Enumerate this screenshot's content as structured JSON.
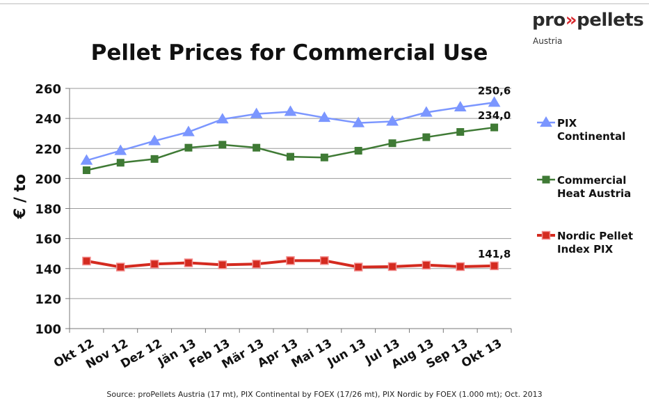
{
  "logo": {
    "prefix": "pro",
    "chevrons": "»",
    "suffix": "pellets",
    "sub": "Austria"
  },
  "source": "Source: proPellets Austria (17 mt), PIX Continental by FOEX (17/26 mt), PIX Nordic by FOEX (1.000 mt); Oct. 2013",
  "colors": {
    "pix_continental": "#7b96ff",
    "commercial_heat": "#3f7a35",
    "nordic": "#d42a1f"
  },
  "chart_data": {
    "type": "line",
    "title": "Pellet Prices for Commercial Use",
    "ylabel": "€ / to",
    "xlabel": "",
    "ylim": [
      100,
      260
    ],
    "yticks": [
      100,
      120,
      140,
      160,
      180,
      200,
      220,
      240,
      260
    ],
    "grid": true,
    "legend": "right",
    "categories": [
      "Okt 12",
      "Nov 12",
      "Dez 12",
      "Jän 13",
      "Feb 13",
      "Mär 13",
      "Apr 13",
      "Mai 13",
      "Jun 13",
      "Jul 13",
      "Aug 13",
      "Sep 13",
      "Okt 13"
    ],
    "series": [
      {
        "name": "PIX Continental",
        "legend_lines": [
          "PIX",
          "Continental"
        ],
        "marker": "triangle",
        "color": "#7b96ff",
        "values": [
          212,
          218.5,
          225,
          231,
          239.5,
          243,
          244.5,
          240.5,
          237,
          238,
          244,
          247.5,
          250.6
        ],
        "end_label": "250,6"
      },
      {
        "name": "Commercial Heat Austria",
        "legend_lines": [
          "Commercial",
          "Heat Austria"
        ],
        "marker": "square",
        "color": "#3f7a35",
        "values": [
          205.5,
          210.5,
          213,
          220.5,
          222.5,
          220.5,
          214.5,
          214,
          218.5,
          223.5,
          227.5,
          231,
          234.0
        ],
        "end_label": "234,0"
      },
      {
        "name": "Nordic Pellet Index PIX",
        "legend_lines": [
          "Nordic Pellet",
          "Index PIX"
        ],
        "marker": "square",
        "color": "#d42a1f",
        "values": [
          145,
          141,
          143,
          143.8,
          142.5,
          143,
          145.3,
          145.3,
          141,
          141.3,
          142.3,
          141.3,
          141.8
        ],
        "end_label": "141,8"
      }
    ]
  }
}
